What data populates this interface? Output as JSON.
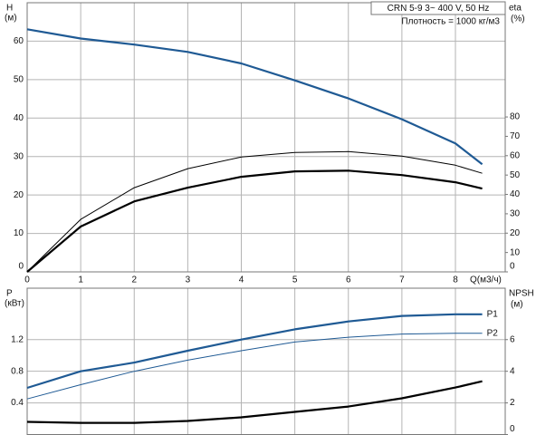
{
  "chart_data": [
    {
      "type": "line",
      "title": "CRN 5-9   3~ 400 V, 50 Hz",
      "subtitle": "Плотность = 1000 кг/м3",
      "ylabel": "H",
      "ylabel_unit": "(м)",
      "y2label": "eta",
      "y2label_unit": "(%)",
      "xlabel": "Q(м3/ч)",
      "x": [
        0,
        1,
        2,
        3,
        4,
        5,
        6,
        7,
        8,
        8.5
      ],
      "xlim": [
        0,
        8.93
      ],
      "xticks": [
        0,
        1,
        2,
        3,
        4,
        5,
        6,
        7,
        8
      ],
      "xtick_labels": true,
      "ylim": [
        0,
        70
      ],
      "yticks": [
        0,
        10,
        20,
        30,
        40,
        50,
        60
      ],
      "y2lim": [
        0,
        139
      ],
      "y2ticks": [
        0,
        10,
        20,
        30,
        40,
        50,
        60,
        70,
        80
      ],
      "grid": true,
      "series": [
        {
          "color": "#1f5a94",
          "values": [
            63.1,
            60.7,
            59.1,
            57.2,
            54.2,
            49.8,
            45.1,
            39.7,
            33.4,
            28
          ]
        },
        {
          "color": "#000000",
          "axis": "y2",
          "values": [
            0,
            27.1,
            43.5,
            53.3,
            59.3,
            61.7,
            62.1,
            59.8,
            55.1,
            50.9
          ]
        },
        {
          "color": "#000000",
          "axis": "y2",
          "values": [
            0,
            23.4,
            36.4,
            43.5,
            49.1,
            51.9,
            52.3,
            50,
            46.3,
            43
          ]
        }
      ]
    },
    {
      "type": "line",
      "ylabel": "P",
      "ylabel_unit": "(кВт)",
      "y2label": "NPSH",
      "y2label_unit": "(м)",
      "x": [
        0,
        1,
        2,
        3,
        4,
        5,
        6,
        7,
        8,
        8.5
      ],
      "xlim": [
        0,
        8.93
      ],
      "xticks": [
        0,
        1,
        2,
        3,
        4,
        5,
        6,
        7,
        8
      ],
      "xtick_labels": false,
      "ylim": [
        0,
        1.85
      ],
      "yticks": [
        0.4,
        0.8,
        1.2
      ],
      "y2lim": [
        0,
        9.25
      ],
      "y2ticks": [
        0,
        2,
        4,
        6
      ],
      "grid": true,
      "series": [
        {
          "name": "P1",
          "color": "#1f5a94",
          "values": [
            0.59,
            0.8,
            0.91,
            1.06,
            1.2,
            1.33,
            1.43,
            1.5,
            1.52,
            1.52
          ]
        },
        {
          "name": "P2",
          "color": "#1f5a94",
          "values": [
            0.45,
            0.63,
            0.8,
            0.94,
            1.06,
            1.17,
            1.23,
            1.27,
            1.28,
            1.28
          ]
        },
        {
          "color": "#000000",
          "axis": "y2",
          "values": [
            0.8,
            0.74,
            0.74,
            0.86,
            1.09,
            1.43,
            1.77,
            2.29,
            2.97,
            3.37
          ]
        }
      ]
    }
  ]
}
